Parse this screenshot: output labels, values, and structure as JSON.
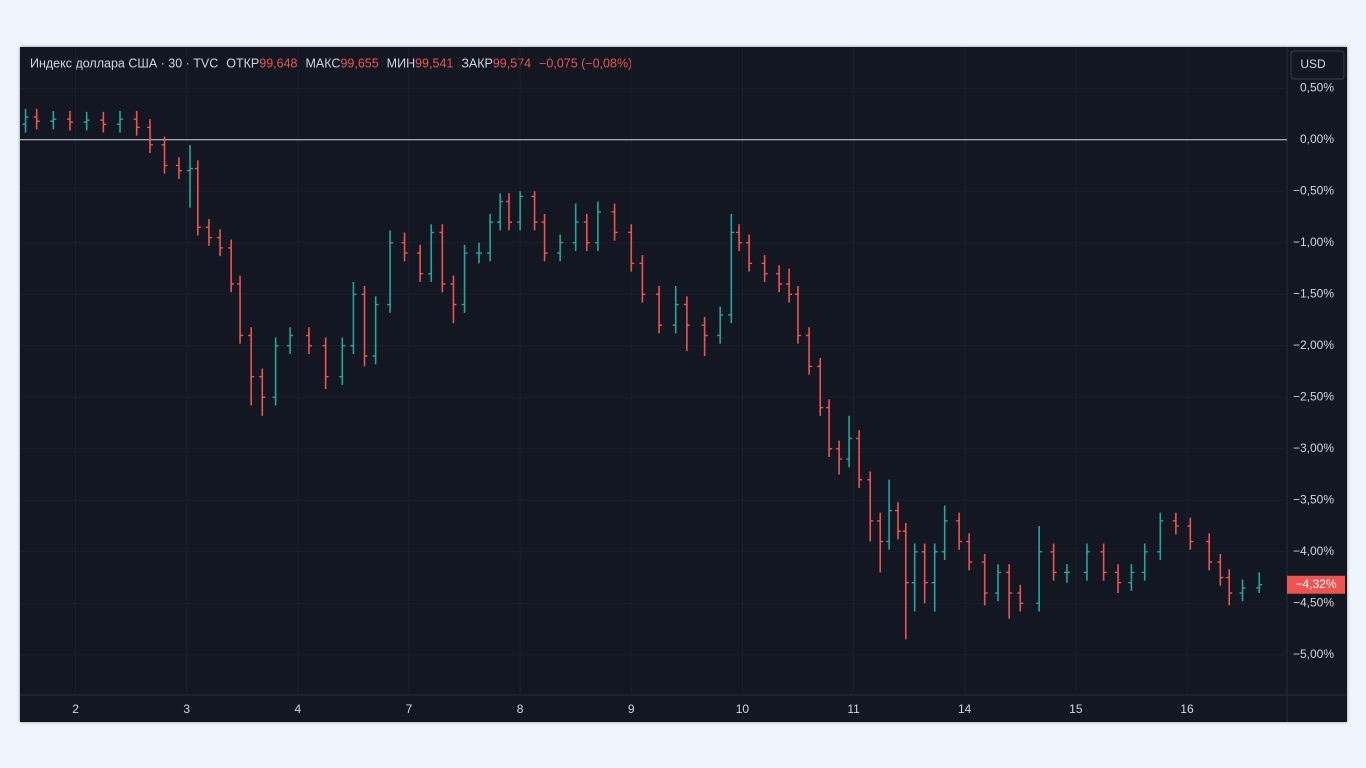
{
  "chart_data": {
    "type": "ohlc",
    "title": "Индекс доллара США · 30 · TVC",
    "legend": [
      {
        "label": "ОТКР",
        "value": "99,648"
      },
      {
        "label": "МАКС",
        "value": "99,655"
      },
      {
        "label": "МИН",
        "value": "99,541"
      },
      {
        "label": "ЗАКР",
        "value": "99,574"
      }
    ],
    "change": "−0,075 (−0,08%)",
    "currency": "USD",
    "last_label": "−4,32%",
    "up_color": "#26a69a",
    "down_color": "#ef5350",
    "baseline": 0,
    "grid": true,
    "xlim": [
      -0.5,
      10.9
    ],
    "xticks": [
      {
        "value": 0,
        "label": "2"
      },
      {
        "value": 1,
        "label": "3"
      },
      {
        "value": 2,
        "label": "4"
      },
      {
        "value": 3,
        "label": "7"
      },
      {
        "value": 4,
        "label": "8"
      },
      {
        "value": 5,
        "label": "9"
      },
      {
        "value": 6,
        "label": "10"
      },
      {
        "value": 7,
        "label": "11"
      },
      {
        "value": 8,
        "label": "14"
      },
      {
        "value": 9,
        "label": "15"
      },
      {
        "value": 10,
        "label": "16"
      }
    ],
    "ylim": [
      -5.39,
      0.9
    ],
    "yticks": [
      {
        "value": 0.5,
        "label": "0,50%"
      },
      {
        "value": 0,
        "label": "0,00%"
      },
      {
        "value": -0.5,
        "label": "−0,50%"
      },
      {
        "value": -1,
        "label": "−1,00%"
      },
      {
        "value": -1.5,
        "label": "−1,50%"
      },
      {
        "value": -2,
        "label": "−2,00%"
      },
      {
        "value": -2.5,
        "label": "−2,50%"
      },
      {
        "value": -3,
        "label": "−3,00%"
      },
      {
        "value": -3.5,
        "label": "−3,50%"
      },
      {
        "value": -4,
        "label": "−4,00%"
      },
      {
        "value": -4.5,
        "label": "−4,50%"
      },
      {
        "value": -5,
        "label": "−5,00%"
      }
    ],
    "x": [
      -0.45,
      -0.35,
      -0.2,
      -0.05,
      0.1,
      0.25,
      0.4,
      0.55,
      0.67,
      0.8,
      0.93,
      1.03,
      1.1,
      1.2,
      1.3,
      1.4,
      1.48,
      1.58,
      1.68,
      1.8,
      1.93,
      2.1,
      2.25,
      2.4,
      2.5,
      2.6,
      2.7,
      2.83,
      2.96,
      3.1,
      3.2,
      3.3,
      3.4,
      3.5,
      3.63,
      3.73,
      3.82,
      3.9,
      4.0,
      4.13,
      4.22,
      4.36,
      4.5,
      4.6,
      4.7,
      4.85,
      5.0,
      5.1,
      5.25,
      5.4,
      5.5,
      5.66,
      5.8,
      5.9,
      5.97,
      6.06,
      6.2,
      6.33,
      6.42,
      6.5,
      6.6,
      6.7,
      6.78,
      6.87,
      6.96,
      7.05,
      7.15,
      7.24,
      7.32,
      7.4,
      7.47,
      7.55,
      7.64,
      7.73,
      7.82,
      7.95,
      8.04,
      8.18,
      8.3,
      8.4,
      8.5,
      8.67,
      8.8,
      8.92,
      9.1,
      9.25,
      9.38,
      9.5,
      9.62,
      9.76,
      9.9,
      10.03,
      10.2,
      10.3,
      10.38,
      10.5,
      10.65
    ],
    "open": [
      0.15,
      0.22,
      0.18,
      0.2,
      0.17,
      0.19,
      0.15,
      0.2,
      0.12,
      -0.05,
      -0.25,
      -0.3,
      -0.28,
      -0.85,
      -0.95,
      -1.05,
      -1.4,
      -1.9,
      -2.3,
      -2.5,
      -2.0,
      -1.9,
      -2.0,
      -2.3,
      -2.0,
      -1.5,
      -2.1,
      -1.6,
      -1.0,
      -1.1,
      -1.3,
      -0.9,
      -1.4,
      -1.6,
      -1.1,
      -1.1,
      -0.8,
      -0.6,
      -0.8,
      -0.55,
      -0.8,
      -1.1,
      -1.0,
      -0.8,
      -1.0,
      -0.7,
      -0.9,
      -1.2,
      -1.5,
      -1.8,
      -1.6,
      -1.8,
      -1.9,
      -1.7,
      -0.9,
      -1.0,
      -1.2,
      -1.3,
      -1.4,
      -1.5,
      -1.9,
      -2.2,
      -2.6,
      -3.0,
      -3.1,
      -2.9,
      -3.3,
      -3.7,
      -3.9,
      -3.6,
      -3.8,
      -4.3,
      -4.0,
      -4.3,
      -4.0,
      -3.7,
      -3.9,
      -4.1,
      -4.4,
      -4.2,
      -4.4,
      -4.5,
      -4.0,
      -4.2,
      -4.2,
      -4.0,
      -4.2,
      -4.3,
      -4.2,
      -4.0,
      -3.7,
      -3.75,
      -3.9,
      -4.1,
      -4.25,
      -4.4,
      -4.35
    ],
    "high": [
      0.3,
      0.3,
      0.28,
      0.28,
      0.27,
      0.27,
      0.28,
      0.28,
      0.2,
      0.03,
      -0.17,
      -0.05,
      -0.2,
      -0.77,
      -0.87,
      -0.97,
      -1.32,
      -1.82,
      -2.22,
      -1.92,
      -1.82,
      -1.82,
      -1.92,
      -1.92,
      -1.38,
      -1.42,
      -1.52,
      -0.88,
      -0.9,
      -1.02,
      -0.82,
      -0.82,
      -1.32,
      -1.02,
      -1.0,
      -0.72,
      -0.52,
      -0.52,
      -0.5,
      -0.5,
      -0.72,
      -0.92,
      -0.62,
      -0.72,
      -0.6,
      -0.62,
      -0.82,
      -1.12,
      -1.42,
      -1.42,
      -1.52,
      -1.72,
      -1.62,
      -0.72,
      -0.82,
      -0.92,
      -1.12,
      -1.22,
      -1.25,
      -1.42,
      -1.82,
      -2.12,
      -2.52,
      -2.92,
      -2.68,
      -2.82,
      -3.22,
      -3.62,
      -3.3,
      -3.52,
      -3.72,
      -3.92,
      -3.92,
      -3.92,
      -3.55,
      -3.62,
      -3.82,
      -4.02,
      -4.12,
      -4.12,
      -4.32,
      -3.75,
      -3.92,
      -4.12,
      -3.92,
      -3.92,
      -4.12,
      -4.12,
      -3.92,
      -3.62,
      -3.62,
      -3.67,
      -3.82,
      -4.02,
      -4.17,
      -4.27,
      -4.2
    ],
    "low": [
      0.07,
      0.1,
      0.1,
      0.09,
      0.09,
      0.07,
      0.07,
      0.04,
      -0.13,
      -0.33,
      -0.38,
      -0.66,
      -0.93,
      -1.03,
      -1.13,
      -1.48,
      -1.98,
      -2.58,
      -2.68,
      -2.58,
      -2.08,
      -2.08,
      -2.42,
      -2.38,
      -2.08,
      -2.2,
      -2.18,
      -1.68,
      -1.18,
      -1.38,
      -1.38,
      -1.48,
      -1.78,
      -1.68,
      -1.2,
      -1.18,
      -0.88,
      -0.88,
      -0.88,
      -0.88,
      -1.18,
      -1.18,
      -1.08,
      -1.08,
      -1.08,
      -0.98,
      -1.28,
      -1.58,
      -1.88,
      -1.88,
      -2.05,
      -2.1,
      -1.98,
      -1.78,
      -1.08,
      -1.28,
      -1.38,
      -1.48,
      -1.58,
      -1.98,
      -2.28,
      -2.68,
      -3.08,
      -3.25,
      -3.18,
      -3.38,
      -3.9,
      -4.2,
      -3.98,
      -3.88,
      -4.85,
      -4.58,
      -4.5,
      -4.58,
      -4.08,
      -3.98,
      -4.18,
      -4.52,
      -4.48,
      -4.65,
      -4.58,
      -4.58,
      -4.28,
      -4.3,
      -4.28,
      -4.28,
      -4.4,
      -4.38,
      -4.28,
      -4.08,
      -3.83,
      -3.98,
      -4.18,
      -4.33,
      -4.52,
      -4.48,
      -4.4
    ],
    "close": [
      0.22,
      0.18,
      0.2,
      0.17,
      0.19,
      0.15,
      0.2,
      0.12,
      -0.05,
      -0.25,
      -0.3,
      -0.28,
      -0.85,
      -0.95,
      -1.05,
      -1.4,
      -1.9,
      -2.3,
      -2.5,
      -2.0,
      -1.9,
      -2.0,
      -2.3,
      -2.0,
      -1.5,
      -2.1,
      -1.6,
      -1.0,
      -1.1,
      -1.3,
      -0.9,
      -1.4,
      -1.6,
      -1.1,
      -1.1,
      -0.8,
      -0.6,
      -0.8,
      -0.55,
      -0.8,
      -1.1,
      -1.0,
      -0.8,
      -1.0,
      -0.7,
      -0.9,
      -1.2,
      -1.5,
      -1.8,
      -1.6,
      -1.8,
      -1.9,
      -1.7,
      -0.9,
      -1.0,
      -1.2,
      -1.3,
      -1.4,
      -1.5,
      -1.9,
      -2.2,
      -2.6,
      -3.0,
      -3.1,
      -2.9,
      -3.3,
      -3.7,
      -3.9,
      -3.6,
      -3.8,
      -4.3,
      -4.0,
      -4.3,
      -4.0,
      -3.7,
      -3.9,
      -4.1,
      -4.4,
      -4.2,
      -4.4,
      -4.5,
      -4.0,
      -4.2,
      -4.2,
      -4.0,
      -4.2,
      -4.3,
      -4.2,
      -4.0,
      -3.7,
      -3.75,
      -3.9,
      -4.1,
      -4.25,
      -4.4,
      -4.35,
      -4.32
    ]
  }
}
